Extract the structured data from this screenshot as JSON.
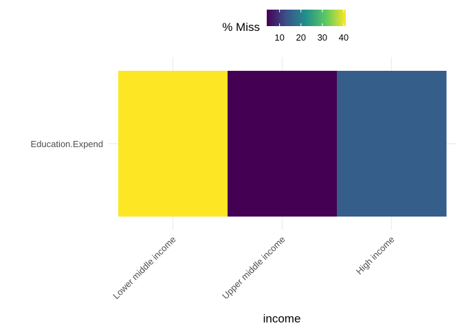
{
  "chart_data": {
    "type": "heatmap",
    "xlabel": "income",
    "ylabel": "",
    "x_categories": [
      "Lower middle income",
      "Upper middle income",
      "High income"
    ],
    "y_categories": [
      "Education.Expend"
    ],
    "values": [
      [
        41,
        4,
        15
      ]
    ],
    "legend": {
      "title": "% Miss",
      "position": "top",
      "ticks": [
        10,
        20,
        30,
        40
      ],
      "range": [
        4,
        41
      ],
      "colormap": "viridis"
    },
    "grid": true
  }
}
